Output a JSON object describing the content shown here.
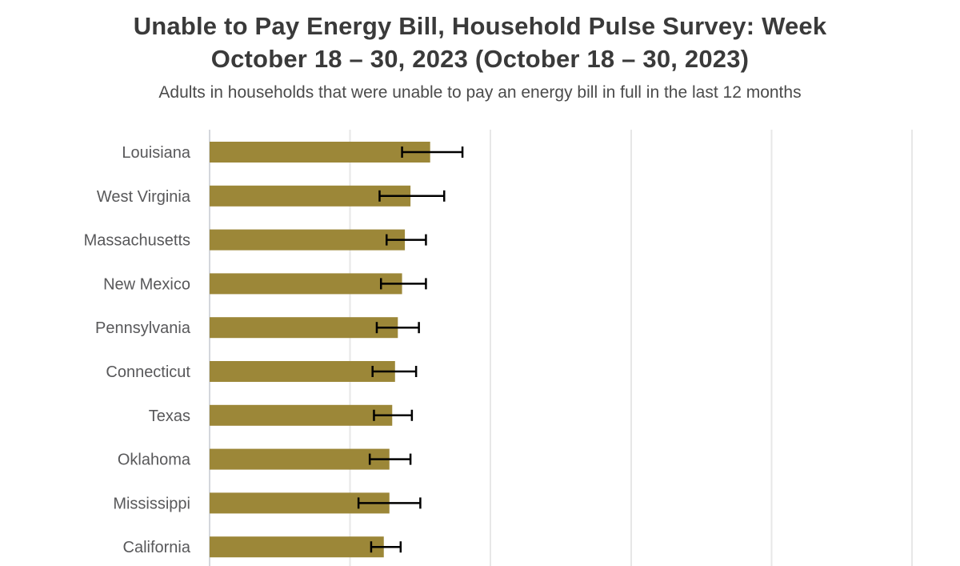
{
  "header": {
    "title_line1": "Unable to Pay Energy Bill, Household Pulse Survey: Week",
    "title_line2": "October 18 – 30, 2023 (October 18 – 30, 2023)",
    "subtitle": "Adults in households that were unable to pay an energy bill in full in the last 12 months"
  },
  "colors": {
    "background": "#ffffff",
    "bar": "#9c8738",
    "error_bar": "#000000",
    "axis_line": "#d4d7dc",
    "gridline": "#e7e7e7",
    "title_text": "#3a3a3a",
    "subtitle_text": "#4b4b4b",
    "category_label_text": "#58585a"
  },
  "chart_data": {
    "type": "bar",
    "orientation": "horizontal",
    "title": "Unable to Pay Energy Bill, Household Pulse Survey: Week October 18 – 30, 2023 (October 18 – 30, 2023)",
    "subtitle": "Adults in households that were unable to pay an energy bill in full in the last 12 months",
    "xlabel": "",
    "ylabel": "",
    "unit": "percent",
    "categories": [
      "Louisiana",
      "West Virginia",
      "Massachusetts",
      "New Mexico",
      "Pennsylvania",
      "Connecticut",
      "Texas",
      "Oklahoma",
      "Mississippi",
      "California"
    ],
    "values": [
      15.7,
      14.3,
      13.9,
      13.7,
      13.4,
      13.2,
      13.0,
      12.8,
      12.8,
      12.4
    ],
    "error_low": [
      13.7,
      12.1,
      12.6,
      12.2,
      11.9,
      11.6,
      11.7,
      11.4,
      10.6,
      11.5
    ],
    "error_high": [
      18.0,
      16.7,
      15.4,
      15.4,
      14.9,
      14.7,
      14.4,
      14.3,
      15.0,
      13.6
    ],
    "xlim": [
      0,
      53.4
    ],
    "gridline_interval": 10,
    "gridline_count": 6,
    "x_tick_labels_visible": false,
    "grid": true,
    "legend": false,
    "error_bars": true
  }
}
